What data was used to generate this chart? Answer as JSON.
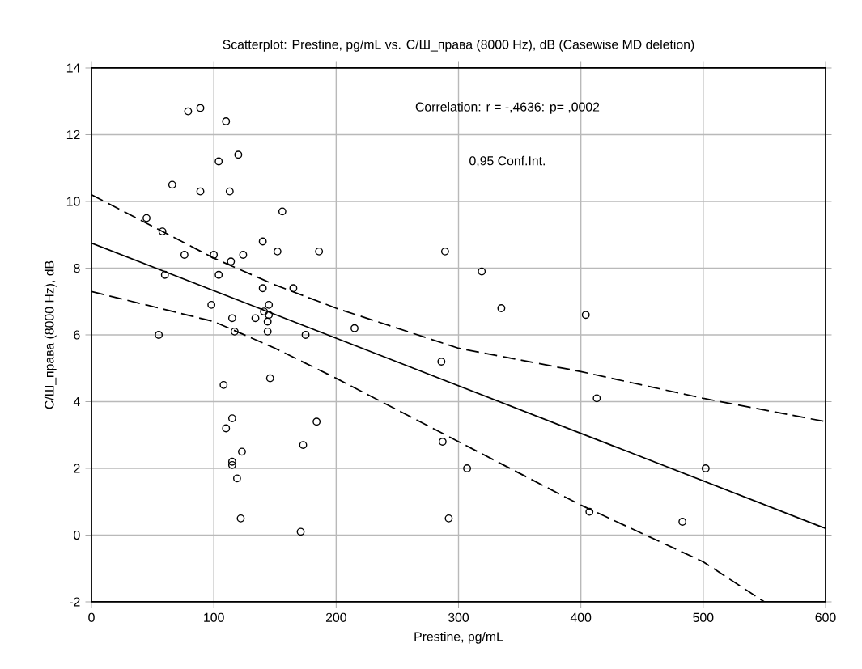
{
  "chart_data": {
    "type": "scatter",
    "title": "Scatterplot: Prestine, pg/mL vs. С/Ш_права (8000 Hz), dB (Casewise MD deletion)",
    "xlabel": "Prestine, pg/mL",
    "ylabel": "С/Ш_права (8000 Hz), dB",
    "annotations": [
      "Correlation: r = -,4636: p= ,0002",
      "0,95 Conf.Int."
    ],
    "xlim": [
      0,
      600
    ],
    "ylim": [
      -2,
      14
    ],
    "xticks": [
      0,
      100,
      200,
      300,
      400,
      500,
      600
    ],
    "yticks": [
      -2,
      0,
      2,
      4,
      6,
      8,
      10,
      12,
      14
    ],
    "grid": true,
    "series": [
      {
        "marker": "circle",
        "color": "#000000",
        "x": [
          45,
          58,
          60,
          55,
          66,
          76,
          79,
          89,
          89,
          98,
          100,
          104,
          104,
          110,
          108,
          110,
          113,
          114,
          115,
          117,
          115,
          115,
          115,
          119,
          120,
          123,
          124,
          122,
          134,
          140,
          140,
          141,
          145,
          145,
          144,
          144,
          146,
          152,
          156,
          165,
          171,
          173,
          175,
          184,
          186,
          215,
          286,
          287,
          289,
          292,
          307,
          319,
          335,
          404,
          407,
          413,
          483,
          502
        ],
        "values": [
          9.5,
          9.1,
          7.8,
          6.0,
          10.5,
          8.4,
          12.7,
          12.8,
          10.3,
          6.9,
          8.4,
          7.8,
          11.2,
          12.4,
          4.5,
          3.2,
          10.3,
          8.2,
          6.5,
          6.1,
          3.5,
          2.2,
          2.1,
          1.7,
          11.4,
          2.5,
          8.4,
          0.5,
          6.5,
          8.8,
          7.4,
          6.7,
          6.9,
          6.6,
          6.4,
          6.1,
          4.7,
          8.5,
          9.7,
          7.4,
          0.1,
          2.7,
          6.0,
          3.4,
          8.5,
          6.2,
          5.2,
          2.8,
          8.5,
          0.5,
          2.0,
          7.9,
          6.8,
          6.6,
          0.7,
          4.1,
          0.4,
          2.0
        ]
      },
      {
        "type": "line",
        "color": "#000000",
        "line_style": "solid",
        "marker": "none",
        "x": [
          0,
          600
        ],
        "values": [
          8.75,
          0.2
        ]
      },
      {
        "type": "line",
        "color": "#000000",
        "line_style": "dashed",
        "marker": "none",
        "x": [
          0,
          100,
          150,
          200,
          300,
          400,
          500,
          600
        ],
        "values": [
          10.2,
          8.3,
          7.5,
          6.8,
          5.6,
          4.9,
          4.1,
          3.4
        ]
      },
      {
        "type": "line",
        "color": "#000000",
        "line_style": "dashed",
        "marker": "none",
        "x": [
          0,
          100,
          150,
          200,
          300,
          400,
          500,
          550
        ],
        "values": [
          7.3,
          6.4,
          5.6,
          4.7,
          2.8,
          0.9,
          -0.8,
          -2.0
        ]
      }
    ]
  }
}
